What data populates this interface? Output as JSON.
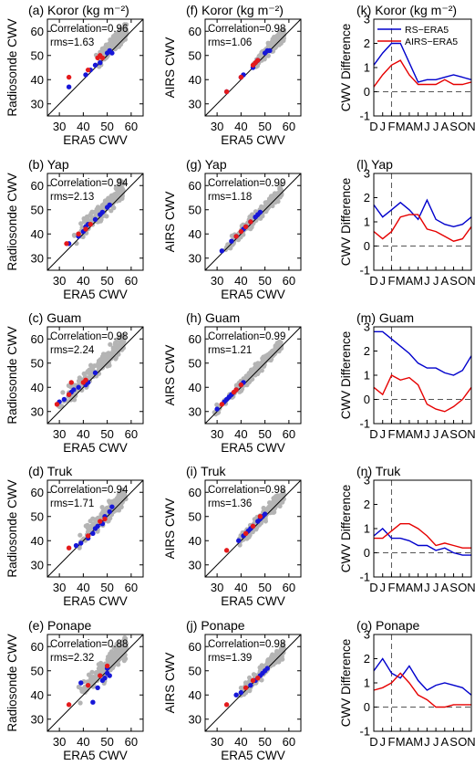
{
  "figure": {
    "colors": {
      "gray": "#b4b4b4",
      "blue": "#1616d8",
      "red": "#e41a1c",
      "rs_line": "#0000cc",
      "airs_line": "#e60000"
    }
  },
  "chart_data": [
    {
      "type": "scatter",
      "panel": "a",
      "title": "(a) Koror (kg m⁻²)",
      "xlabel": "ERA5 CWV",
      "ylabel": "Radiosonde CWV",
      "xlim": [
        25,
        65
      ],
      "ylim": [
        25,
        65
      ],
      "xticks": [
        30,
        40,
        50,
        60
      ],
      "yticks": [
        30,
        40,
        50,
        60
      ],
      "correlation_label": "Correlation=0.96",
      "rms_label": "rms=1.63",
      "gray_range": [
        45,
        58
      ],
      "gray_offset": 2.0,
      "gray_spread": 1.6,
      "blue": [
        [
          34,
          37
        ],
        [
          41,
          42
        ],
        [
          43,
          44
        ],
        [
          45,
          46
        ],
        [
          47,
          47
        ],
        [
          50,
          51
        ],
        [
          51,
          52
        ],
        [
          52,
          51
        ]
      ],
      "red": [
        [
          34,
          41
        ],
        [
          42,
          44
        ],
        [
          46,
          49
        ],
        [
          47,
          50
        ],
        [
          48,
          49
        ]
      ]
    },
    {
      "type": "scatter",
      "panel": "f",
      "title": "(f) Koror (kg m⁻²)",
      "xlabel": "ERA5 CWV",
      "ylabel": "AIRS CWV",
      "xlim": [
        25,
        65
      ],
      "ylim": [
        25,
        65
      ],
      "xticks": [
        30,
        40,
        50,
        60
      ],
      "yticks": [
        30,
        40,
        50,
        60
      ],
      "correlation_label": "Correlation=0.98",
      "rms_label": "rms=1.06",
      "gray_range": [
        45,
        58
      ],
      "gray_offset": 0.8,
      "gray_spread": 1.2,
      "blue": [
        [
          34,
          35
        ],
        [
          40,
          41
        ],
        [
          41,
          42
        ],
        [
          45,
          45
        ],
        [
          47,
          48
        ],
        [
          50,
          51
        ],
        [
          51,
          52
        ],
        [
          52,
          52
        ]
      ],
      "red": [
        [
          34,
          35
        ],
        [
          40,
          41
        ],
        [
          45,
          46
        ],
        [
          46,
          47
        ],
        [
          47,
          48
        ]
      ]
    },
    {
      "type": "line",
      "panel": "k",
      "title": "(k) Koror (kg m⁻²)",
      "ylabel": "CWV Difference",
      "ylim": [
        -1,
        3
      ],
      "yticks": [
        -1,
        0,
        1,
        2,
        3
      ],
      "categories": [
        "D",
        "J",
        "F",
        "M",
        "A",
        "M",
        "J",
        "J",
        "A",
        "S",
        "O",
        "N"
      ],
      "series": [
        {
          "name": "RS−ERA5",
          "values": [
            1.1,
            1.6,
            2.0,
            2.0,
            1.2,
            0.4,
            0.5,
            0.5,
            0.6,
            0.7,
            0.6,
            0.5
          ]
        },
        {
          "name": "AIRS−ERA5",
          "values": [
            0.2,
            0.7,
            1.1,
            1.3,
            0.7,
            0.3,
            0.3,
            0.3,
            0.5,
            0.3,
            0.3,
            0.4
          ]
        }
      ]
    },
    {
      "type": "scatter",
      "panel": "b",
      "title": "(b) Yap",
      "xlabel": "ERA5 CWV",
      "ylabel": "Radiosonde CWV",
      "xlim": [
        25,
        65
      ],
      "ylim": [
        25,
        65
      ],
      "xticks": [
        30,
        40,
        50,
        60
      ],
      "yticks": [
        30,
        40,
        50,
        60
      ],
      "correlation_label": "Correlation=0.94",
      "rms_label": "rms=2.13",
      "gray_range": [
        35,
        57
      ],
      "gray_offset": 2.0,
      "gray_spread": 1.8,
      "blue": [
        [
          34,
          36
        ],
        [
          38,
          39
        ],
        [
          40,
          41
        ],
        [
          41,
          43
        ],
        [
          42,
          44
        ],
        [
          45,
          46
        ],
        [
          47,
          48
        ],
        [
          48,
          49
        ],
        [
          50,
          51
        ],
        [
          51,
          52
        ]
      ],
      "red": [
        [
          33,
          36
        ],
        [
          38,
          40
        ],
        [
          41,
          42
        ],
        [
          43,
          44
        ]
      ]
    },
    {
      "type": "scatter",
      "panel": "g",
      "title": "(g) Yap",
      "xlabel": "ERA5 CWV",
      "ylabel": "AIRS CWV",
      "xlim": [
        25,
        65
      ],
      "ylim": [
        25,
        65
      ],
      "xticks": [
        30,
        40,
        50,
        60
      ],
      "yticks": [
        30,
        40,
        50,
        60
      ],
      "correlation_label": "Correlation=0.99",
      "rms_label": "rms=1.18",
      "gray_range": [
        33,
        57
      ],
      "gray_offset": 0.8,
      "gray_spread": 1.2,
      "blue": [
        [
          32,
          33
        ],
        [
          36,
          37
        ],
        [
          38,
          39
        ],
        [
          41,
          42
        ],
        [
          42,
          43
        ],
        [
          44,
          45
        ],
        [
          46,
          47
        ],
        [
          47,
          48
        ],
        [
          48,
          49
        ]
      ],
      "red": [
        [
          38,
          39
        ],
        [
          40,
          41
        ],
        [
          42,
          43
        ],
        [
          44,
          45
        ]
      ]
    },
    {
      "type": "line",
      "panel": "l",
      "title": "(l) Yap",
      "ylabel": "CWV Difference",
      "ylim": [
        -1,
        3
      ],
      "yticks": [
        -1,
        0,
        1,
        2,
        3
      ],
      "categories": [
        "D",
        "J",
        "F",
        "M",
        "A",
        "M",
        "J",
        "J",
        "A",
        "S",
        "O",
        "N"
      ],
      "series": [
        {
          "name": "RS−ERA5",
          "values": [
            1.7,
            1.2,
            1.5,
            1.8,
            1.5,
            1.1,
            1.9,
            1.1,
            0.9,
            0.8,
            0.9,
            1.2
          ]
        },
        {
          "name": "AIRS−ERA5",
          "values": [
            0.6,
            0.3,
            0.6,
            1.2,
            1.3,
            1.3,
            0.7,
            0.6,
            0.4,
            0.2,
            0.3,
            0.8
          ]
        }
      ]
    },
    {
      "type": "scatter",
      "panel": "c",
      "title": "(c) Guam",
      "xlabel": "ERA5 CWV",
      "ylabel": "Radiosonde CWV",
      "xlim": [
        25,
        65
      ],
      "ylim": [
        25,
        65
      ],
      "xticks": [
        30,
        40,
        50,
        60
      ],
      "yticks": [
        30,
        40,
        50,
        60
      ],
      "correlation_label": "Correlation=0.98",
      "rms_label": "rms=2.24",
      "gray_range": [
        28,
        57
      ],
      "gray_offset": 2.2,
      "gray_spread": 1.8,
      "blue": [
        [
          30,
          34
        ],
        [
          32,
          35
        ],
        [
          34,
          37
        ],
        [
          35,
          38
        ],
        [
          36,
          39
        ],
        [
          38,
          40
        ],
        [
          41,
          41
        ],
        [
          42,
          42
        ],
        [
          45,
          46
        ]
      ],
      "red": [
        [
          29,
          33
        ],
        [
          34,
          37
        ],
        [
          35,
          42
        ],
        [
          40,
          42
        ],
        [
          41,
          43
        ]
      ]
    },
    {
      "type": "scatter",
      "panel": "h",
      "title": "(h) Guam",
      "xlabel": "ERA5 CWV",
      "ylabel": "AIRS CWV",
      "xlim": [
        25,
        65
      ],
      "ylim": [
        25,
        65
      ],
      "xticks": [
        30,
        40,
        50,
        60
      ],
      "yticks": [
        30,
        40,
        50,
        60
      ],
      "correlation_label": "Correlation=0.99",
      "rms_label": "rms=1.21",
      "gray_range": [
        28,
        57
      ],
      "gray_offset": 0.8,
      "gray_spread": 1.2,
      "blue": [
        [
          30,
          31
        ],
        [
          33,
          34
        ],
        [
          34,
          35
        ],
        [
          35,
          36
        ],
        [
          36,
          37
        ],
        [
          38,
          39
        ],
        [
          40,
          41
        ],
        [
          41,
          42
        ]
      ],
      "red": [
        [
          32,
          33
        ],
        [
          37,
          38
        ],
        [
          38,
          39
        ],
        [
          40,
          41
        ]
      ]
    },
    {
      "type": "line",
      "panel": "m",
      "title": "(m) Guam",
      "ylabel": "CWV Difference",
      "ylim": [
        -1,
        3
      ],
      "yticks": [
        -1,
        0,
        1,
        2,
        3
      ],
      "categories": [
        "D",
        "J",
        "F",
        "M",
        "A",
        "M",
        "J",
        "J",
        "A",
        "S",
        "O",
        "N"
      ],
      "series": [
        {
          "name": "RS−ERA5",
          "values": [
            2.8,
            2.8,
            2.5,
            2.2,
            1.9,
            1.5,
            1.3,
            1.3,
            1.1,
            1.0,
            1.2,
            1.8
          ]
        },
        {
          "name": "AIRS−ERA5",
          "values": [
            0.5,
            0.2,
            1.0,
            0.8,
            0.9,
            0.6,
            -0.2,
            -0.4,
            -0.5,
            -0.3,
            0.0,
            0.5
          ]
        }
      ]
    },
    {
      "type": "scatter",
      "panel": "d",
      "title": "(d) Truk",
      "xlabel": "ERA5 CWV",
      "ylabel": "Radiosonde CWV",
      "xlim": [
        25,
        65
      ],
      "ylim": [
        25,
        65
      ],
      "xticks": [
        30,
        40,
        50,
        60
      ],
      "yticks": [
        30,
        40,
        50,
        60
      ],
      "correlation_label": "Correlation=0.94",
      "rms_label": "rms=1.71",
      "gray_range": [
        38,
        58
      ],
      "gray_offset": 1.5,
      "gray_spread": 1.7,
      "blue": [
        [
          37,
          38
        ],
        [
          39,
          39
        ],
        [
          42,
          41
        ],
        [
          44,
          43
        ],
        [
          45,
          45
        ],
        [
          46,
          46
        ],
        [
          48,
          47
        ],
        [
          49,
          50
        ],
        [
          51,
          52
        ],
        [
          52,
          54
        ]
      ],
      "red": [
        [
          34,
          37
        ],
        [
          42,
          42
        ],
        [
          47,
          48
        ],
        [
          49,
          49
        ]
      ]
    },
    {
      "type": "scatter",
      "panel": "i",
      "title": "(i) Truk",
      "xlabel": "ERA5 CWV",
      "ylabel": "AIRS CWV",
      "xlim": [
        25,
        65
      ],
      "ylim": [
        25,
        65
      ],
      "xticks": [
        30,
        40,
        50,
        60
      ],
      "yticks": [
        30,
        40,
        50,
        60
      ],
      "correlation_label": "Correlation=0.98",
      "rms_label": "rms=1.36",
      "gray_range": [
        38,
        58
      ],
      "gray_offset": 0.8,
      "gray_spread": 1.3,
      "blue": [
        [
          39,
          40
        ],
        [
          41,
          42
        ],
        [
          43,
          44
        ],
        [
          44,
          45
        ],
        [
          45,
          46
        ],
        [
          47,
          48
        ],
        [
          48,
          49
        ],
        [
          49,
          50
        ],
        [
          50,
          51
        ]
      ],
      "red": [
        [
          34,
          36
        ],
        [
          42,
          43
        ],
        [
          45,
          46
        ],
        [
          48,
          50
        ]
      ]
    },
    {
      "type": "line",
      "panel": "n",
      "title": "(n) Truk",
      "ylabel": "CWV Difference",
      "ylim": [
        -1,
        3
      ],
      "yticks": [
        -1,
        0,
        1,
        2,
        3
      ],
      "categories": [
        "D",
        "J",
        "F",
        "M",
        "A",
        "M",
        "J",
        "J",
        "A",
        "S",
        "O",
        "N"
      ],
      "series": [
        {
          "name": "RS−ERA5",
          "values": [
            0.7,
            1.0,
            0.6,
            0.6,
            0.5,
            0.3,
            0.3,
            0.1,
            0.2,
            0.0,
            -0.1,
            -0.1
          ]
        },
        {
          "name": "AIRS−ERA5",
          "values": [
            0.6,
            0.6,
            0.9,
            1.2,
            1.2,
            1.0,
            0.7,
            0.3,
            0.4,
            0.3,
            0.2,
            0.2
          ]
        }
      ]
    },
    {
      "type": "scatter",
      "panel": "e",
      "title": "(e) Ponape",
      "xlabel": "ERA5 CWV",
      "ylabel": "Radiosonde CWV",
      "xlim": [
        25,
        65
      ],
      "ylim": [
        25,
        65
      ],
      "xticks": [
        30,
        40,
        50,
        60
      ],
      "yticks": [
        30,
        40,
        50,
        60
      ],
      "correlation_label": "Correlation=0.88",
      "rms_label": "rms=2.32",
      "gray_range": [
        38,
        58
      ],
      "gray_offset": 1.8,
      "gray_spread": 2.2,
      "blue": [
        [
          39,
          45
        ],
        [
          44,
          37
        ],
        [
          46,
          43
        ],
        [
          48,
          46
        ],
        [
          49,
          47
        ],
        [
          50,
          49
        ],
        [
          51,
          48
        ],
        [
          50,
          51
        ]
      ],
      "red": [
        [
          34,
          36
        ],
        [
          42,
          44
        ],
        [
          47,
          48
        ],
        [
          50,
          52
        ]
      ]
    },
    {
      "type": "scatter",
      "panel": "j",
      "title": "(j) Ponape",
      "xlabel": "ERA5 CWV",
      "ylabel": "AIRS CWV",
      "xlim": [
        25,
        65
      ],
      "ylim": [
        25,
        65
      ],
      "xticks": [
        30,
        40,
        50,
        60
      ],
      "yticks": [
        30,
        40,
        50,
        60
      ],
      "correlation_label": "Correlation=0.98",
      "rms_label": "rms=1.39",
      "gray_range": [
        38,
        58
      ],
      "gray_offset": 0.8,
      "gray_spread": 1.3,
      "blue": [
        [
          38,
          40
        ],
        [
          40,
          41
        ],
        [
          44,
          44
        ],
        [
          46,
          46
        ],
        [
          48,
          48
        ],
        [
          49,
          49
        ],
        [
          50,
          50
        ],
        [
          51,
          51
        ]
      ],
      "red": [
        [
          34,
          36
        ],
        [
          42,
          43
        ],
        [
          45,
          46
        ],
        [
          47,
          47
        ]
      ]
    },
    {
      "type": "line",
      "panel": "o",
      "title": "(o) Ponape",
      "ylabel": "CWV Difference",
      "ylim": [
        -1,
        3
      ],
      "yticks": [
        -1,
        0,
        1,
        2,
        3
      ],
      "categories": [
        "D",
        "J",
        "F",
        "M",
        "A",
        "M",
        "J",
        "J",
        "A",
        "S",
        "O",
        "N"
      ],
      "series": [
        {
          "name": "RS−ERA5",
          "values": [
            1.5,
            2.0,
            1.4,
            1.2,
            1.7,
            1.1,
            0.7,
            0.9,
            1.0,
            0.9,
            0.8,
            0.5
          ]
        },
        {
          "name": "AIRS−ERA5",
          "values": [
            0.7,
            0.8,
            1.0,
            1.4,
            1.0,
            0.5,
            0.3,
            0.0,
            0.0,
            0.1,
            0.1,
            0.1
          ]
        }
      ]
    }
  ]
}
